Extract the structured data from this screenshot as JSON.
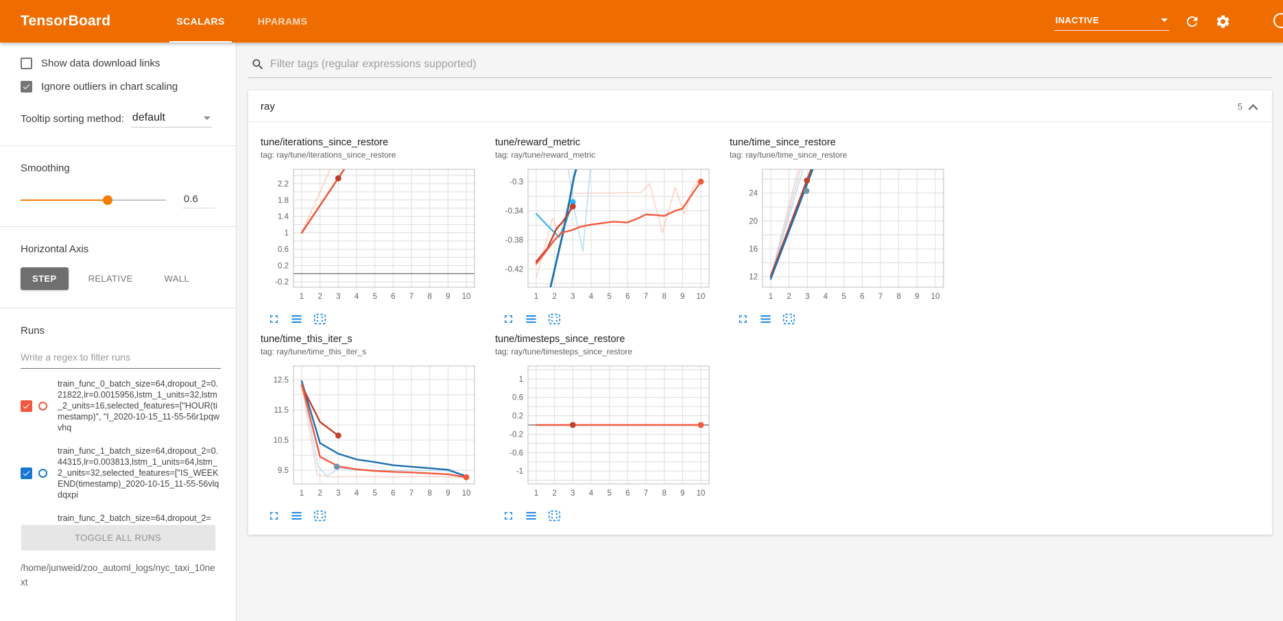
{
  "header": {
    "logo": "TensorBoard",
    "tabs": [
      {
        "label": "SCALARS",
        "active": true
      },
      {
        "label": "HPARAMS",
        "active": false
      }
    ],
    "status": "INACTIVE",
    "accent_color": "#ef6c00"
  },
  "sidebar": {
    "checkboxes": [
      {
        "label": "Show data download links",
        "checked": false
      },
      {
        "label": "Ignore outliers in chart scaling",
        "checked": true
      }
    ],
    "tooltip_sorting": {
      "label": "Tooltip sorting method:",
      "value": "default"
    },
    "smoothing": {
      "label": "Smoothing",
      "value": "0.6",
      "fraction": 0.6,
      "color": "#f57c00"
    },
    "horizontal_axis": {
      "label": "Horizontal Axis",
      "options": [
        "STEP",
        "RELATIVE",
        "WALL"
      ],
      "selected": "STEP"
    },
    "runs": {
      "label": "Runs",
      "filter_placeholder": "Write a regex to filter runs",
      "items": [
        {
          "text": "train_func_0_batch_size=64,dropout_2=0.21822,lr=0.0015956,lstm_1_units=32,lstm_2_units=16,selected_features=[\"HOUR(timestamp)\", \"I_2020-10-15_11-55-56r1pqwvhq",
          "checked": true,
          "color": "#f0593e",
          "partial": false
        },
        {
          "text": "train_func_1_batch_size=64,dropout_2=0.44315,lr=0.003813,lstm_1_units=64,lstm_2_units=32,selected_features=[\"IS_WEEKEND(timestamp)_2020-10-15_11-55-56vlqdqxpi",
          "checked": true,
          "color": "#1976d2",
          "partial": false
        },
        {
          "text": "train_func_2_batch_size=64,dropout_2=",
          "checked": null,
          "color": null,
          "partial": true
        }
      ],
      "toggle_button": "TOGGLE ALL RUNS",
      "log_path": "/home/junweid/zoo_automl_logs/nyc_taxi_10next"
    }
  },
  "main": {
    "filter_placeholder": "Filter tags (regular expressions supported)",
    "card": {
      "title": "ray",
      "count": "5"
    }
  },
  "chart_data": [
    {
      "type": "line",
      "title": "tune/iterations_since_restore",
      "tag": "tag: ray/tune/iterations_since_restore",
      "x_ticks": [
        1,
        2,
        3,
        4,
        5,
        6,
        7,
        8,
        9,
        10
      ],
      "x_domain": [
        0.55,
        10.45
      ],
      "y_ticks": [
        "2.2",
        "1.8",
        "1.4",
        "1",
        "0.6",
        "0.2",
        "-0.2"
      ],
      "y_domain": [
        -0.33,
        2.55
      ],
      "zero_line": true,
      "series": [
        {
          "name": "train_func_0 (raw)",
          "color": "#f5b9aa",
          "width": 2,
          "opacity": 0.55,
          "points": [
            [
              1,
              1
            ],
            [
              2.56,
              2.55
            ]
          ]
        },
        {
          "name": "train_func_0 (smoothed)",
          "color": "#e85a41",
          "width": 2.6,
          "opacity": 1,
          "points": [
            [
              1,
              1
            ],
            [
              3.32,
              2.55
            ]
          ]
        }
      ],
      "dots": [
        {
          "x": 3,
          "y": 2.33,
          "color": "#c0392b"
        }
      ]
    },
    {
      "type": "line",
      "title": "tune/reward_metric",
      "tag": "tag: ray/tune/reward_metric",
      "x_ticks": [
        1,
        2,
        3,
        4,
        5,
        6,
        7,
        8,
        9,
        10
      ],
      "x_domain": [
        0.55,
        10.45
      ],
      "y_ticks": [
        "-0.3",
        "-0.34",
        "-0.38",
        "-0.42"
      ],
      "y_domain": [
        -0.445,
        -0.283
      ],
      "zero_line": false,
      "series": [
        {
          "name": "raw orange",
          "color": "#f5b9aa",
          "width": 1.8,
          "opacity": 0.55,
          "points": [
            [
              1,
              -0.432
            ],
            [
              1.9,
              -0.35
            ],
            [
              2.3,
              -0.373
            ],
            [
              2.9,
              -0.316
            ],
            [
              6.7,
              -0.315
            ],
            [
              7.2,
              -0.303
            ],
            [
              7.9,
              -0.37
            ],
            [
              8.6,
              -0.308
            ],
            [
              9.1,
              -0.345
            ],
            [
              9.6,
              -0.306
            ],
            [
              10,
              -0.298
            ]
          ]
        },
        {
          "name": "raw blue",
          "color": "#a8d4f0",
          "width": 1.8,
          "opacity": 0.7,
          "points": [
            [
              2.75,
              -0.283
            ],
            [
              3.1,
              -0.34
            ],
            [
              3.55,
              -0.396
            ],
            [
              3.75,
              -0.34
            ],
            [
              3.95,
              -0.283
            ]
          ]
        },
        {
          "name": "cyan",
          "color": "#3bb3e8",
          "width": 2.2,
          "opacity": 1,
          "points": [
            [
              1,
              -0.344
            ],
            [
              1.6,
              -0.36
            ],
            [
              2.25,
              -0.376
            ],
            [
              2.6,
              -0.357
            ],
            [
              3,
              -0.328
            ]
          ]
        },
        {
          "name": "dark blue",
          "color": "#1b6fae",
          "width": 2.8,
          "opacity": 1,
          "points": [
            [
              1.78,
              -0.445
            ],
            [
              2.1,
              -0.41
            ],
            [
              2.45,
              -0.372
            ],
            [
              2.75,
              -0.335
            ],
            [
              3.05,
              -0.295
            ],
            [
              3.18,
              -0.283
            ]
          ]
        },
        {
          "name": "dark red",
          "color": "#bf4229",
          "width": 2.4,
          "opacity": 1,
          "points": [
            [
              1,
              -0.41
            ],
            [
              1.6,
              -0.392
            ],
            [
              2.1,
              -0.365
            ],
            [
              2.45,
              -0.355
            ],
            [
              2.75,
              -0.344
            ],
            [
              3,
              -0.334
            ]
          ]
        },
        {
          "name": "orange",
          "color": "#f4593c",
          "width": 2.4,
          "opacity": 1,
          "points": [
            [
              1,
              -0.413
            ],
            [
              1.5,
              -0.397
            ],
            [
              2,
              -0.38
            ],
            [
              2.4,
              -0.37
            ],
            [
              2.9,
              -0.367
            ],
            [
              3.4,
              -0.362
            ],
            [
              4,
              -0.359
            ],
            [
              4.6,
              -0.357
            ],
            [
              5.2,
              -0.355
            ],
            [
              6,
              -0.356
            ],
            [
              6.6,
              -0.35
            ],
            [
              7,
              -0.345
            ],
            [
              7.6,
              -0.346
            ],
            [
              8,
              -0.347
            ],
            [
              8.6,
              -0.34
            ],
            [
              9,
              -0.337
            ],
            [
              9.5,
              -0.318
            ],
            [
              10,
              -0.3
            ]
          ]
        }
      ],
      "dots": [
        {
          "x": 3,
          "y": -0.328,
          "color": "#29b6f6"
        },
        {
          "x": 3,
          "y": -0.334,
          "color": "#bf4229"
        },
        {
          "x": 10,
          "y": -0.3,
          "color": "#f4593c"
        }
      ]
    },
    {
      "type": "line",
      "title": "tune/time_since_restore",
      "tag": "tag: ray/tune/time_since_restore",
      "x_ticks": [
        1,
        2,
        3,
        4,
        5,
        6,
        7,
        8,
        9,
        10
      ],
      "x_domain": [
        0.55,
        10.45
      ],
      "y_ticks": [
        "24",
        "20",
        "16",
        "12"
      ],
      "y_domain": [
        10.5,
        27.4
      ],
      "zero_line": false,
      "series": [
        {
          "name": "raw lavender",
          "color": "#c9c3d8",
          "width": 2,
          "opacity": 0.5,
          "points": [
            [
              1,
              12
            ],
            [
              2.5,
              27.4
            ]
          ]
        },
        {
          "name": "raw pink",
          "color": "#f5b9aa",
          "width": 2,
          "opacity": 0.55,
          "points": [
            [
              1,
              11.9
            ],
            [
              2.62,
              27.4
            ]
          ]
        },
        {
          "name": "raw blue",
          "color": "#a8d4f0",
          "width": 2,
          "opacity": 0.65,
          "points": [
            [
              1,
              11.8
            ],
            [
              2.76,
              27.4
            ]
          ]
        },
        {
          "name": "dark red",
          "color": "#bf4229",
          "width": 2.4,
          "opacity": 1,
          "points": [
            [
              1,
              12.1
            ],
            [
              3.2,
              27.4
            ]
          ]
        },
        {
          "name": "blue",
          "color": "#1b6fae",
          "width": 2.4,
          "opacity": 1,
          "points": [
            [
              1,
              11.7
            ],
            [
              3.3,
              27.4
            ]
          ]
        }
      ],
      "dots": [
        {
          "x": 2.98,
          "y": 25.8,
          "color": "#bf4229"
        },
        {
          "x": 2.95,
          "y": 24.3,
          "color": "#6d92ab"
        }
      ]
    },
    {
      "type": "line",
      "title": "tune/time_this_iter_s",
      "tag": "tag: ray/tune/time_this_iter_s",
      "x_ticks": [
        1,
        2,
        3,
        4,
        5,
        6,
        7,
        8,
        9,
        10
      ],
      "x_domain": [
        0.55,
        10.45
      ],
      "y_ticks": [
        "12.5",
        "11.5",
        "10.5",
        "9.5"
      ],
      "y_domain": [
        9.05,
        12.95
      ],
      "zero_line": false,
      "series": [
        {
          "name": "raw pink",
          "color": "#f5b9aa",
          "width": 1.8,
          "opacity": 0.55,
          "points": [
            [
              1,
              12.3
            ],
            [
              1.85,
              9.35
            ],
            [
              2.6,
              9.28
            ],
            [
              4,
              9.3
            ],
            [
              6,
              9.28
            ],
            [
              8,
              9.3
            ],
            [
              9.4,
              9.27
            ],
            [
              10,
              9.26
            ]
          ]
        },
        {
          "name": "raw blue",
          "color": "#a8d4f0",
          "width": 1.8,
          "opacity": 0.65,
          "points": [
            [
              1,
              12.45
            ],
            [
              1.9,
              9.62
            ],
            [
              2.4,
              9.3
            ],
            [
              3,
              9.56
            ],
            [
              4,
              9.52
            ],
            [
              5,
              9.5
            ],
            [
              6,
              9.5
            ],
            [
              7,
              9.5
            ],
            [
              8,
              9.5
            ],
            [
              9,
              9.48
            ],
            [
              10,
              9.28
            ]
          ]
        },
        {
          "name": "blue",
          "color": "#1b6fae",
          "width": 2.4,
          "opacity": 1,
          "points": [
            [
              1,
              12.45
            ],
            [
              2,
              10.4
            ],
            [
              3,
              10.05
            ],
            [
              4,
              9.86
            ],
            [
              5,
              9.77
            ],
            [
              6,
              9.67
            ],
            [
              7,
              9.62
            ],
            [
              8,
              9.57
            ],
            [
              9,
              9.52
            ],
            [
              10,
              9.3
            ]
          ]
        },
        {
          "name": "dark red",
          "color": "#bf4229",
          "width": 2.4,
          "opacity": 1,
          "points": [
            [
              1,
              12.3
            ],
            [
              2,
              11.1
            ],
            [
              3,
              10.65
            ]
          ]
        },
        {
          "name": "orange",
          "color": "#f4593c",
          "width": 2.4,
          "opacity": 1,
          "points": [
            [
              1,
              12.35
            ],
            [
              2,
              9.95
            ],
            [
              3,
              9.63
            ],
            [
              4,
              9.53
            ],
            [
              5,
              9.48
            ],
            [
              6,
              9.45
            ],
            [
              7,
              9.43
            ],
            [
              8,
              9.4
            ],
            [
              9,
              9.37
            ],
            [
              10,
              9.27
            ]
          ]
        }
      ],
      "dots": [
        {
          "x": 3,
          "y": 10.65,
          "color": "#bf4229"
        },
        {
          "x": 2.92,
          "y": 9.62,
          "color": "#6d92ab"
        },
        {
          "x": 10,
          "y": 9.27,
          "color": "#f4593c"
        }
      ]
    },
    {
      "type": "line",
      "title": "tune/timesteps_since_restore",
      "tag": "tag: ray/tune/timesteps_since_restore",
      "x_ticks": [
        1,
        2,
        3,
        4,
        5,
        6,
        7,
        8,
        9,
        10
      ],
      "x_domain": [
        0.55,
        10.45
      ],
      "y_ticks": [
        "1",
        "0.6",
        "0.2",
        "-0.2",
        "-0.6",
        "-1"
      ],
      "y_domain": [
        -1.28,
        1.28
      ],
      "zero_line": true,
      "series": [
        {
          "name": "orange flat",
          "color": "#f4593c",
          "width": 2.4,
          "opacity": 1,
          "points": [
            [
              1,
              0
            ],
            [
              10,
              0
            ]
          ]
        }
      ],
      "dots": [
        {
          "x": 3,
          "y": 0,
          "color": "#bf4229"
        },
        {
          "x": 10,
          "y": 0,
          "color": "#f4593c"
        }
      ]
    }
  ]
}
